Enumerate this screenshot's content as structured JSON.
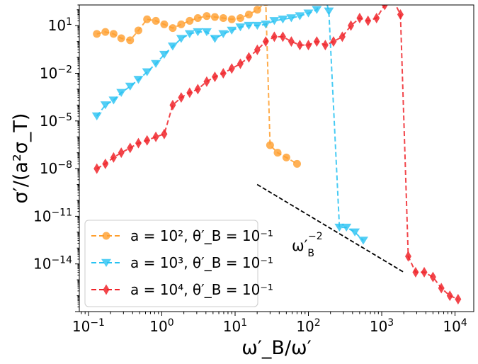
{
  "chart_data": {
    "type": "line",
    "xscale": "log",
    "yscale": "log",
    "xlim": [
      0.075,
      18000
    ],
    "ylim": [
      1e-17,
      200.0
    ],
    "xlabel": "ω′_B/ω′",
    "ylabel": "σ′/(a²σ_T)",
    "xticks": [
      {
        "value": 0.1,
        "base": "10",
        "exp": "−1"
      },
      {
        "value": 1,
        "base": "10",
        "exp": "0"
      },
      {
        "value": 10,
        "base": "10",
        "exp": "1"
      },
      {
        "value": 100,
        "base": "10",
        "exp": "2"
      },
      {
        "value": 1000,
        "base": "10",
        "exp": "3"
      },
      {
        "value": 10000,
        "base": "10",
        "exp": "4"
      }
    ],
    "yticks": [
      {
        "value": 10,
        "base": "10",
        "exp": "1"
      },
      {
        "value": 0.01,
        "base": "10",
        "exp": "−2"
      },
      {
        "value": 1e-05,
        "base": "10",
        "exp": "−5"
      },
      {
        "value": 1e-08,
        "base": "10",
        "exp": "−8"
      },
      {
        "value": 1e-11,
        "base": "10",
        "exp": "−11"
      },
      {
        "value": 1e-14,
        "base": "10",
        "exp": "−14"
      }
    ],
    "series": [
      {
        "name": "a = 10², θ′_B = 10⁻¹",
        "color": "#ff9e2c",
        "marker": "circle",
        "x": [
          0.13,
          0.17,
          0.22,
          0.28,
          0.37,
          0.48,
          0.63,
          0.83,
          1.08,
          1.41,
          1.84,
          2.4,
          3.1,
          4.1,
          5.3,
          6.9,
          9.0,
          11.8,
          15.4,
          20.1,
          26.2,
          30.0,
          38.0,
          50.0,
          70.0
        ],
        "y": [
          3.0,
          4.0,
          3.0,
          1.6,
          1.2,
          5.0,
          25.0,
          20.0,
          12.0,
          7.0,
          12.0,
          20.0,
          30.0,
          40.0,
          35.0,
          30.0,
          25.0,
          30.0,
          50.0,
          100.0,
          300.0,
          3e-07,
          1e-07,
          5e-08,
          2e-08
        ]
      },
      {
        "name": "a = 10³, θ′_B = 10⁻¹",
        "color": "#27c2f2",
        "marker": "triangle-down",
        "x": [
          0.13,
          0.17,
          0.22,
          0.28,
          0.37,
          0.48,
          0.63,
          0.83,
          1.08,
          1.41,
          1.84,
          2.4,
          3.1,
          4.1,
          5.3,
          6.9,
          9.0,
          11.8,
          15.4,
          20.1,
          26.2,
          34.3,
          44.8,
          58.5,
          76.4,
          100,
          130,
          165,
          190,
          265,
          330,
          430,
          560
        ],
        "y": [
          2e-05,
          0.0001,
          0.0002,
          0.0006,
          0.0015,
          0.004,
          0.012,
          0.04,
          0.15,
          0.5,
          1.5,
          3,
          4,
          4,
          1.5,
          3,
          5,
          8,
          10,
          10,
          12,
          20,
          25,
          30,
          40,
          60,
          100,
          1000,
          80,
          2e-12,
          2e-12,
          1e-12,
          3e-13
        ]
      },
      {
        "name": "a = 10⁴, θ′_B = 10⁻¹",
        "color": "#f0242a",
        "marker": "diamond",
        "x": [
          0.13,
          0.17,
          0.22,
          0.28,
          0.37,
          0.48,
          0.63,
          0.83,
          1.08,
          1.41,
          1.84,
          2.4,
          3.1,
          4.1,
          5.3,
          6.9,
          9.0,
          11.8,
          15.4,
          20.1,
          26.2,
          34.3,
          44.8,
          58.5,
          76.4,
          100,
          130,
          170,
          220,
          290,
          380,
          500,
          650,
          850,
          1100,
          1400,
          1800,
          2300,
          2900,
          3800,
          5000,
          6500,
          8500,
          11000
        ],
        "y": [
          1e-08,
          2e-08,
          5e-08,
          1e-07,
          2e-07,
          4e-07,
          6e-07,
          1e-06,
          1.5e-06,
          0.0001,
          0.0003,
          0.0006,
          0.001,
          0.003,
          0.006,
          0.01,
          0.02,
          0.04,
          0.1,
          0.3,
          1,
          2,
          2,
          1,
          0.6,
          0.6,
          1,
          0.6,
          1,
          2,
          10,
          30,
          20,
          30,
          200,
          500,
          50,
          3e-14,
          3e-15,
          3e-15,
          1.5e-15,
          3e-16,
          1e-16,
          6e-17
        ]
      }
    ],
    "annotation": {
      "base": "ω′",
      "sub": "B",
      "sup": "−2",
      "line_x": [
        20,
        2000
      ],
      "line_y": [
        1e-09,
        3e-15
      ]
    },
    "grid": false,
    "legend_position": "lower-left"
  }
}
